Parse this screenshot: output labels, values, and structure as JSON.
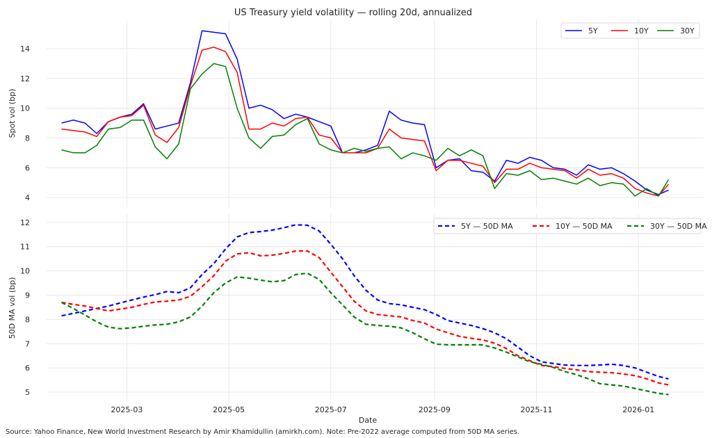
{
  "title": "US Treasury yield volatility — rolling 20d, annualized",
  "footer": "Source: Yahoo Finance, New World Investment Research by Amir Khamidullin (amirkh.com). Note: Pre-2022 average computed from 50D MA series.",
  "colors": {
    "5Y": "#0000ff",
    "10Y": "#ff0000",
    "30Y": "#008000"
  },
  "chart_data": [
    {
      "type": "line",
      "ylabel": "Spot vol (bp)",
      "xlabel": "",
      "ylim": [
        3.35,
        15.96
      ],
      "yticks": [
        4,
        6,
        8,
        10,
        12,
        14
      ],
      "grid": true,
      "legend": "top-right",
      "x": [
        "2025-01-21",
        "2025-01-28",
        "2025-02-04",
        "2025-02-11",
        "2025-02-18",
        "2025-02-25",
        "2025-03-04",
        "2025-03-11",
        "2025-03-18",
        "2025-03-25",
        "2025-04-01",
        "2025-04-08",
        "2025-04-15",
        "2025-04-22",
        "2025-04-29",
        "2025-05-06",
        "2025-05-13",
        "2025-05-20",
        "2025-05-27",
        "2025-06-03",
        "2025-06-10",
        "2025-06-17",
        "2025-06-24",
        "2025-07-01",
        "2025-07-08",
        "2025-07-15",
        "2025-07-22",
        "2025-07-29",
        "2025-08-05",
        "2025-08-12",
        "2025-08-19",
        "2025-08-26",
        "2025-09-02",
        "2025-09-09",
        "2025-09-16",
        "2025-09-23",
        "2025-09-30",
        "2025-10-07",
        "2025-10-14",
        "2025-10-21",
        "2025-10-28",
        "2025-11-04",
        "2025-11-11",
        "2025-11-18",
        "2025-11-25",
        "2025-12-02",
        "2025-12-09",
        "2025-12-16",
        "2025-12-23",
        "2025-12-30",
        "2026-01-06",
        "2026-01-13",
        "2026-01-19"
      ],
      "series": [
        {
          "name": "5Y",
          "values": [
            9.0,
            9.2,
            9.0,
            8.3,
            9.1,
            9.4,
            9.6,
            10.3,
            8.6,
            8.8,
            9.0,
            11.7,
            15.2,
            15.1,
            15.0,
            13.3,
            10.0,
            10.2,
            9.9,
            9.3,
            9.6,
            9.4,
            9.1,
            8.8,
            7.0,
            7.0,
            7.2,
            7.5,
            9.8,
            9.2,
            9.0,
            8.9,
            6.0,
            6.5,
            6.6,
            5.8,
            5.7,
            5.1,
            6.5,
            6.3,
            6.7,
            6.5,
            6.0,
            5.9,
            5.5,
            6.2,
            5.9,
            6.0,
            5.6,
            5.1,
            4.5,
            4.2,
            4.5
          ]
        },
        {
          "name": "10Y",
          "values": [
            8.6,
            8.5,
            8.4,
            8.1,
            9.1,
            9.4,
            9.5,
            10.2,
            8.2,
            7.7,
            8.7,
            11.5,
            13.9,
            14.1,
            13.8,
            12.4,
            8.6,
            8.6,
            9.0,
            8.8,
            9.3,
            9.4,
            8.2,
            8.0,
            7.0,
            7.0,
            7.0,
            7.3,
            8.6,
            8.0,
            7.9,
            7.8,
            5.8,
            6.5,
            6.5,
            6.3,
            6.1,
            5.0,
            5.9,
            5.9,
            6.3,
            6.0,
            5.9,
            5.8,
            5.3,
            5.9,
            5.5,
            5.6,
            5.3,
            4.6,
            4.3,
            4.1,
            4.9
          ]
        },
        {
          "name": "30Y",
          "values": [
            7.2,
            7.0,
            7.0,
            7.5,
            8.6,
            8.7,
            9.2,
            9.2,
            7.4,
            6.6,
            7.6,
            11.3,
            12.3,
            13.0,
            12.8,
            10.0,
            8.0,
            7.3,
            8.1,
            8.2,
            8.9,
            9.3,
            7.6,
            7.2,
            7.0,
            7.3,
            7.1,
            7.3,
            7.4,
            6.6,
            7.0,
            6.8,
            6.5,
            7.3,
            6.8,
            7.2,
            6.8,
            4.6,
            5.6,
            5.5,
            5.8,
            5.2,
            5.3,
            5.1,
            4.9,
            5.3,
            4.8,
            5.0,
            4.9,
            4.1,
            4.6,
            4.1,
            5.2
          ]
        }
      ]
    },
    {
      "type": "line",
      "ylabel": "50D MA vol (bp)",
      "xlabel": "Date",
      "ylim": [
        4.6,
        12.34
      ],
      "yticks": [
        5,
        6,
        7,
        8,
        9,
        10,
        11,
        12
      ],
      "xticks": [
        "2025-03",
        "2025-05",
        "2025-07",
        "2025-09",
        "2025-11",
        "2026-01"
      ],
      "grid": true,
      "legend": "top-right",
      "line_style": "dashed",
      "series": [
        {
          "name": "5Y — 50D MA",
          "values": [
            8.15,
            8.25,
            8.35,
            8.45,
            8.55,
            8.68,
            8.8,
            8.92,
            9.02,
            9.15,
            9.1,
            9.3,
            9.85,
            10.3,
            10.9,
            11.4,
            11.58,
            11.62,
            11.68,
            11.78,
            11.9,
            11.88,
            11.65,
            11.1,
            10.5,
            9.8,
            9.2,
            8.8,
            8.65,
            8.6,
            8.5,
            8.4,
            8.2,
            7.95,
            7.85,
            7.75,
            7.62,
            7.45,
            7.2,
            6.85,
            6.5,
            6.25,
            6.18,
            6.12,
            6.1,
            6.1,
            6.12,
            6.15,
            6.1,
            6.0,
            5.82,
            5.65,
            5.55
          ]
        },
        {
          "name": "10Y — 50D MA",
          "values": [
            8.7,
            8.62,
            8.55,
            8.45,
            8.35,
            8.42,
            8.5,
            8.62,
            8.72,
            8.75,
            8.8,
            8.95,
            9.35,
            9.8,
            10.4,
            10.7,
            10.75,
            10.62,
            10.65,
            10.72,
            10.82,
            10.82,
            10.55,
            9.95,
            9.35,
            8.75,
            8.35,
            8.2,
            8.15,
            8.1,
            7.95,
            7.85,
            7.6,
            7.45,
            7.3,
            7.22,
            7.15,
            7.02,
            6.8,
            6.5,
            6.3,
            6.1,
            6.05,
            5.98,
            5.92,
            5.85,
            5.82,
            5.8,
            5.75,
            5.68,
            5.55,
            5.38,
            5.3
          ]
        },
        {
          "name": "30Y — 50D MA",
          "values": [
            8.7,
            8.45,
            8.18,
            7.9,
            7.68,
            7.62,
            7.65,
            7.72,
            7.77,
            7.8,
            7.9,
            8.1,
            8.55,
            9.1,
            9.5,
            9.75,
            9.7,
            9.62,
            9.55,
            9.6,
            9.85,
            9.9,
            9.65,
            9.1,
            8.6,
            8.1,
            7.8,
            7.75,
            7.72,
            7.65,
            7.45,
            7.2,
            6.98,
            6.95,
            6.95,
            6.95,
            6.95,
            6.82,
            6.65,
            6.45,
            6.25,
            6.15,
            6.02,
            5.85,
            5.72,
            5.55,
            5.35,
            5.3,
            5.25,
            5.15,
            5.05,
            4.95,
            4.9
          ]
        }
      ]
    }
  ]
}
